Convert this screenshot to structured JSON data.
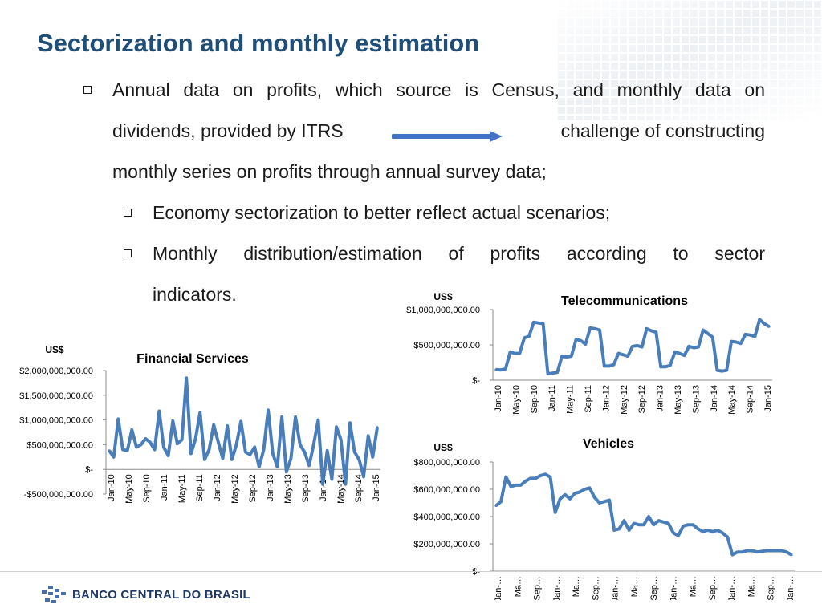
{
  "page": {
    "title": "Sectorization and monthly estimation",
    "bullet1": {
      "line1": "Annual data on profits, which source is Census, and monthly data on",
      "line2_left": "dividends, provided by ITRS",
      "line2_right": "challenge of constructing",
      "line3": "monthly series on profits through annual survey data;"
    },
    "bullet2": "Economy sectorization to better reflect actual scenarios;",
    "bullet3": {
      "line1_words": [
        "Monthly",
        "distribution/estimation",
        "of",
        "profits",
        "according",
        "to",
        "sector"
      ],
      "line2": "indicators."
    },
    "logo_text": "BANCO CENTRAL DO BRASIL"
  },
  "colors": {
    "title": "#1f4e79",
    "series": "#4a7ebb",
    "arrow": "#4472c4",
    "logo": "#1f3864"
  },
  "chart_data": [
    {
      "id": "financial",
      "type": "line",
      "title": "Financial Services",
      "ylabel": "US$",
      "ylim": [
        -500000000,
        2000000000
      ],
      "yticks": [
        -500000000,
        0,
        500000000,
        1000000000,
        1500000000,
        2000000000
      ],
      "ytick_labels": [
        "-$500,000,000.00",
        "$-",
        "$500,000,000.00",
        "$1,000,000,000.00",
        "$1,500,000,000.00",
        "$2,000,000,000.00"
      ],
      "xtick_labels": [
        "Jan-10",
        "May-10",
        "Sep-10",
        "Jan-11",
        "May-11",
        "Sep-11",
        "Jan-12",
        "May-12",
        "Sep-12",
        "Jan-13",
        "May-13",
        "Sep-13",
        "Jan-14",
        "May-14",
        "Sep-14",
        "Jan-15"
      ],
      "values": [
        380000000,
        250000000,
        1020000000,
        400000000,
        380000000,
        800000000,
        450000000,
        500000000,
        620000000,
        550000000,
        400000000,
        1180000000,
        450000000,
        280000000,
        980000000,
        520000000,
        600000000,
        1850000000,
        320000000,
        620000000,
        1150000000,
        200000000,
        400000000,
        900000000,
        550000000,
        220000000,
        880000000,
        200000000,
        500000000,
        970000000,
        350000000,
        300000000,
        450000000,
        50000000,
        400000000,
        1200000000,
        320000000,
        50000000,
        1060000000,
        -50000000,
        220000000,
        1060000000,
        500000000,
        350000000,
        80000000,
        500000000,
        1000000000,
        -300000000,
        380000000,
        -200000000,
        860000000,
        600000000,
        -300000000,
        940000000,
        350000000,
        200000000,
        -150000000,
        680000000,
        250000000,
        850000000
      ]
    },
    {
      "id": "telecom",
      "type": "line",
      "title": "Telecommunications",
      "ylabel": "US$",
      "ylim": [
        0,
        1000000000
      ],
      "yticks": [
        0,
        500000000,
        1000000000
      ],
      "ytick_labels": [
        "$-",
        "$500,000,000.00",
        "$1,000,000,000.00"
      ],
      "xtick_labels": [
        "Jan-10",
        "May-10",
        "Sep-10",
        "Jan-11",
        "May-11",
        "Sep-11",
        "Jan-12",
        "May-12",
        "Sep-12",
        "Jan-13",
        "May-13",
        "Sep-13",
        "Jan-14",
        "May-14",
        "Sep-14",
        "Jan-15"
      ],
      "values": [
        150000000,
        145000000,
        160000000,
        400000000,
        380000000,
        380000000,
        600000000,
        620000000,
        820000000,
        810000000,
        800000000,
        90000000,
        100000000,
        110000000,
        340000000,
        330000000,
        340000000,
        580000000,
        560000000,
        510000000,
        740000000,
        730000000,
        710000000,
        200000000,
        200000000,
        220000000,
        380000000,
        360000000,
        340000000,
        480000000,
        490000000,
        470000000,
        730000000,
        700000000,
        680000000,
        190000000,
        190000000,
        210000000,
        400000000,
        380000000,
        350000000,
        480000000,
        460000000,
        470000000,
        710000000,
        660000000,
        610000000,
        140000000,
        130000000,
        140000000,
        550000000,
        540000000,
        520000000,
        650000000,
        640000000,
        620000000,
        860000000,
        800000000,
        760000000
      ]
    },
    {
      "id": "vehicles",
      "type": "line",
      "title": "Vehicles",
      "ylabel": "US$",
      "ylim": [
        0,
        800000000
      ],
      "yticks": [
        0,
        200000000,
        400000000,
        600000000,
        800000000
      ],
      "ytick_labels": [
        "$-",
        "$200,000,000.00",
        "$400,000,000.00",
        "$600,000,000.00",
        "$800,000,000.00"
      ],
      "xtick_labels": [
        "Jan-…",
        "Ma…",
        "Sep…",
        "Jan-…",
        "Ma…",
        "Sep…",
        "Jan-…",
        "Ma…",
        "Sep…",
        "Jan-…",
        "Ma…",
        "Sep…",
        "Jan-…",
        "Ma…",
        "Sep…",
        "Jan-…"
      ],
      "values": [
        480000000,
        510000000,
        690000000,
        620000000,
        630000000,
        630000000,
        660000000,
        680000000,
        680000000,
        700000000,
        710000000,
        690000000,
        430000000,
        530000000,
        560000000,
        530000000,
        570000000,
        580000000,
        600000000,
        610000000,
        540000000,
        500000000,
        510000000,
        520000000,
        300000000,
        310000000,
        370000000,
        300000000,
        350000000,
        340000000,
        340000000,
        400000000,
        340000000,
        370000000,
        360000000,
        350000000,
        280000000,
        260000000,
        330000000,
        340000000,
        340000000,
        310000000,
        290000000,
        300000000,
        290000000,
        300000000,
        280000000,
        250000000,
        120000000,
        140000000,
        140000000,
        150000000,
        150000000,
        140000000,
        145000000,
        150000000,
        150000000,
        150000000,
        150000000,
        140000000,
        120000000
      ]
    }
  ]
}
